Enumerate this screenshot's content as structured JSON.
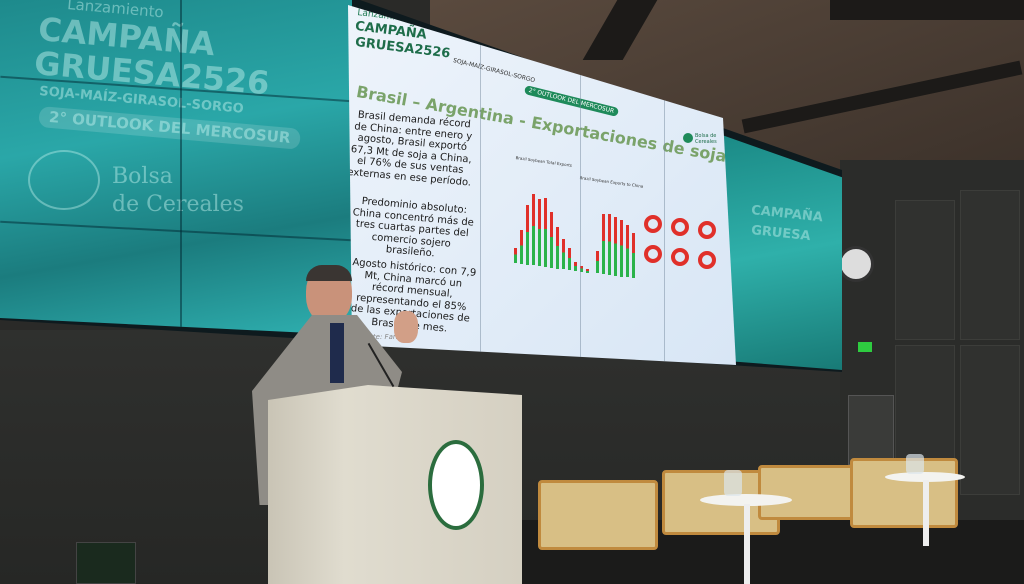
{
  "left_screen": {
    "launch": "Lanzamiento",
    "title_1": "CAMPAÑA",
    "title_2": "GRUESA2526",
    "crops": "SOJA-MAÍZ-GIRASOL-SORGO",
    "outlook": "2° OUTLOOK DEL MERCOSUR",
    "org_1": "Bolsa",
    "org_2": "de Cereales"
  },
  "slide": {
    "launch": "Lanzamiento",
    "title_1": "CAMPAÑA",
    "title_2": "GRUESA2526",
    "crops": "SOJA-MAÍZ-GIRASOL-SORGO",
    "badge": "2° OUTLOOK DEL MERCOSUR",
    "heading": "Brasil – Argentina - Exportaciones de soja -",
    "p1": "Brasil demanda récord de China: entre enero y agosto, Brasil exportó 67,3 Mt de soja a China, el 76% de sus ventas externas en ese período.",
    "p2": "Predominio absoluto: China concentró más de tres cuartas partes del comercio sojero brasileño.",
    "p3": "Agosto histórico: con 7,9 Mt, China marcó un récord mensual, representando el 85% de las exportaciones de Brasil ese mes.",
    "source": "Fuente: Farmdoc",
    "logo_text": "Bolsa de Cereales",
    "legend_1": "Brazil Soybean Total Exports",
    "legend_2": "Brazil Soybean Exports to China",
    "colors": {
      "total": "#2bb34a",
      "china": "#e0302a"
    }
  },
  "right_screen": {
    "title_1": "CAMPAÑA",
    "title_2": "GRUESA"
  },
  "podium_logo": "Bolsa de Cereales",
  "exit_sign": "exit-sign-icon"
}
